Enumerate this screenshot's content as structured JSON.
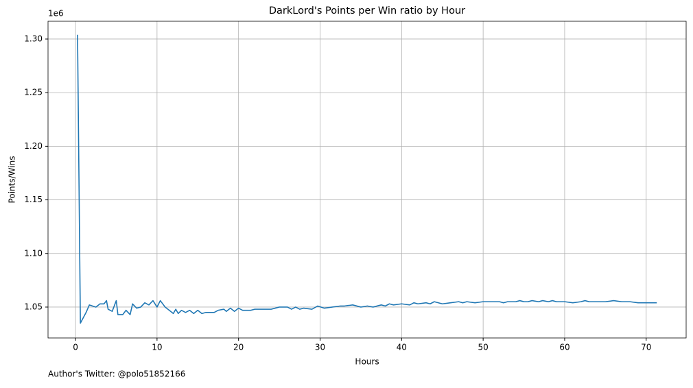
{
  "chart_data": {
    "type": "line",
    "title": "DarkLord's Points per Win ratio by Hour",
    "x_label": "Hours",
    "y_label": "Points/Wins",
    "y_offset_label": "1e6",
    "footnote": "Author's Twitter: @polo51852166",
    "xlim": [
      -3.37,
      74.9
    ],
    "ylim": [
      1021200,
      1316600
    ],
    "xticks": [
      0,
      10,
      20,
      30,
      40,
      50,
      60,
      70
    ],
    "yticks": [
      {
        "value": 1050000,
        "label": "1.05"
      },
      {
        "value": 1100000,
        "label": "1.10"
      },
      {
        "value": 1150000,
        "label": "1.15"
      },
      {
        "value": 1200000,
        "label": "1.20"
      },
      {
        "value": 1250000,
        "label": "1.25"
      },
      {
        "value": 1300000,
        "label": "1.30"
      }
    ],
    "grid": true,
    "x": [
      0.25,
      0.6,
      1.3,
      1.7,
      2.5,
      3,
      3.5,
      3.8,
      4.0,
      4.5,
      5.0,
      5.2,
      5.8,
      6.2,
      6.7,
      7.0,
      7.5,
      8,
      8.5,
      9,
      9.5,
      10,
      10.4,
      11,
      11.5,
      12,
      12.3,
      12.6,
      13,
      13.5,
      14,
      14.5,
      15,
      15.5,
      16,
      17,
      17.5,
      18.2,
      18.5,
      19,
      19.5,
      20,
      20.5,
      21.5,
      22,
      24,
      25,
      26,
      26.5,
      27,
      27.5,
      28,
      29,
      29.7,
      30.5,
      31.5,
      32.5,
      33,
      34,
      35,
      35.8,
      36.5,
      37.5,
      38,
      38.5,
      39,
      40,
      41,
      41.5,
      42,
      43,
      43.5,
      44,
      45,
      46,
      47,
      47.5,
      48,
      49,
      50,
      51,
      52,
      52.5,
      53,
      54,
      54.5,
      55,
      55.5,
      56,
      56.8,
      57.3,
      58,
      58.5,
      59,
      60,
      61,
      62,
      62.5,
      63,
      64,
      65,
      66,
      67,
      68,
      69,
      70,
      71.3
    ],
    "series": [
      {
        "name": "DarkLord",
        "color": "#1f77b4",
        "values": [
          1304000,
          1035000,
          1045000,
          1052000,
          1050000,
          1053000,
          1053000,
          1056000,
          1048000,
          1046000,
          1056000,
          1043000,
          1043000,
          1047000,
          1043000,
          1053000,
          1049000,
          1050000,
          1054000,
          1052000,
          1056000,
          1050000,
          1056000,
          1050000,
          1047000,
          1044000,
          1048000,
          1044000,
          1047000,
          1045000,
          1047000,
          1044000,
          1047000,
          1044000,
          1045000,
          1045000,
          1047000,
          1048000,
          1046000,
          1049000,
          1046000,
          1049000,
          1047000,
          1047000,
          1048000,
          1048000,
          1050000,
          1050000,
          1048000,
          1050000,
          1048000,
          1049000,
          1048000,
          1051000,
          1049000,
          1050000,
          1051000,
          1051000,
          1052000,
          1050000,
          1051000,
          1050000,
          1052000,
          1051000,
          1053000,
          1052000,
          1053000,
          1052000,
          1054000,
          1053000,
          1054000,
          1053000,
          1055000,
          1053000,
          1054000,
          1055000,
          1054000,
          1055000,
          1054000,
          1055000,
          1055000,
          1055000,
          1054000,
          1055000,
          1055000,
          1056000,
          1055000,
          1055000,
          1056000,
          1055000,
          1056000,
          1055000,
          1056000,
          1055000,
          1055000,
          1054000,
          1055000,
          1056000,
          1055000,
          1055000,
          1055000,
          1056000,
          1055000,
          1055000,
          1054000,
          1054000,
          1054000
        ]
      }
    ]
  }
}
